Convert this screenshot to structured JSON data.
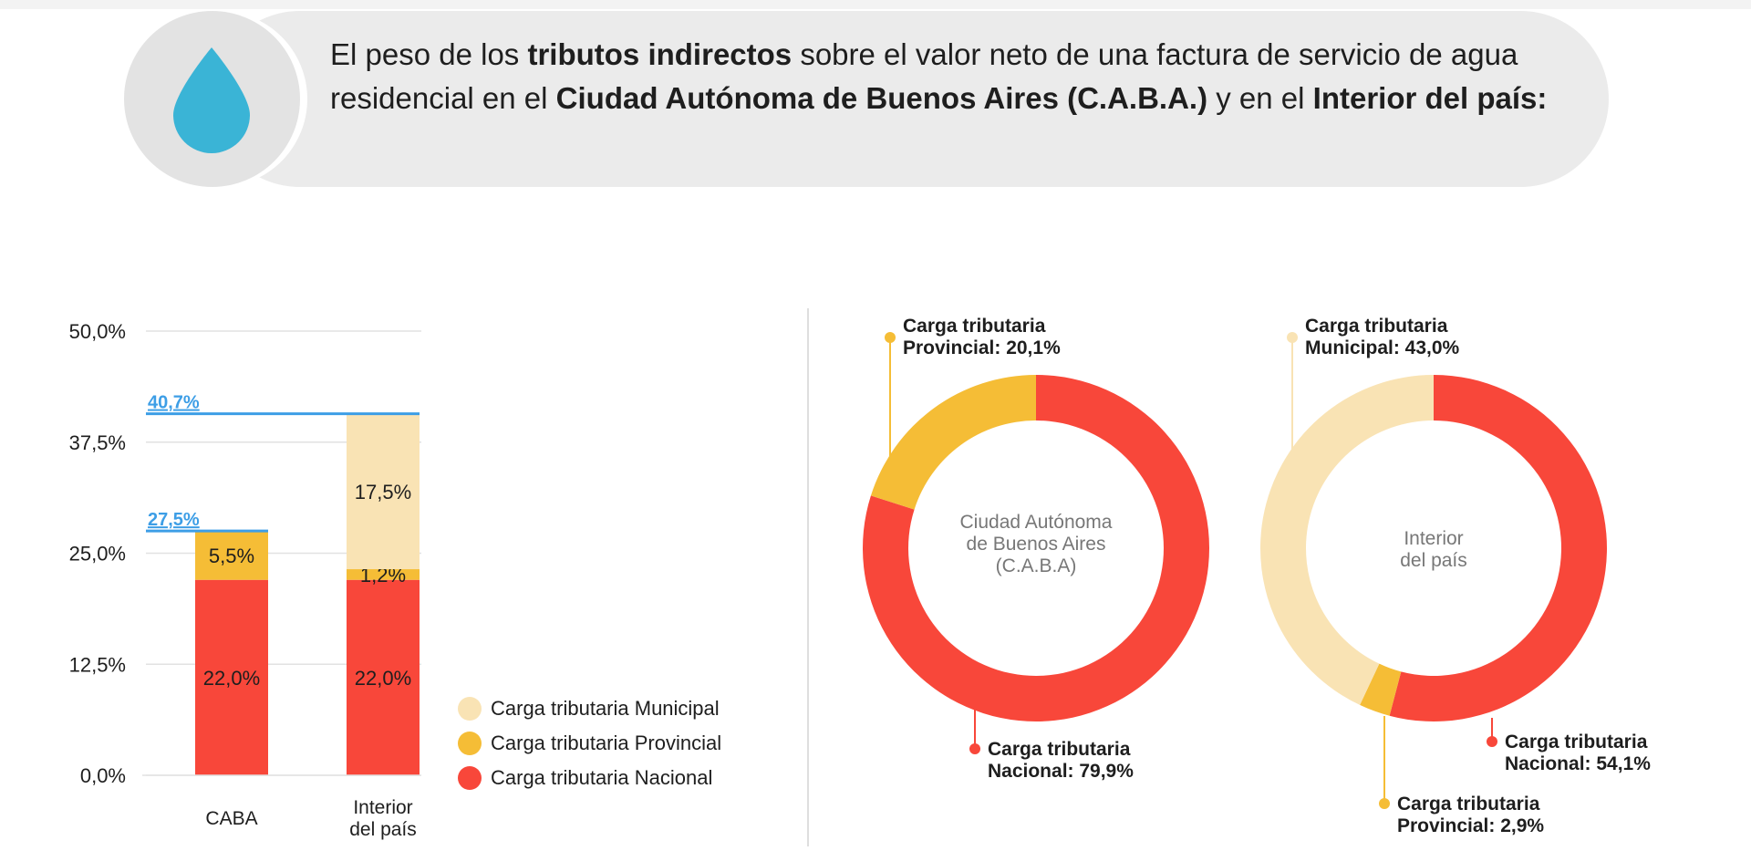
{
  "header": {
    "segments": [
      {
        "text": "El peso de los ",
        "bold": false
      },
      {
        "text": "tributos indirectos",
        "bold": true
      },
      {
        "text": " sobre el valor neto de una factura de servicio de agua residencial en el ",
        "bold": false
      },
      {
        "text": "Ciudad Autónoma de Buenos Aires (C.A.B.A.)",
        "bold": true
      },
      {
        "text": " y en el ",
        "bold": false
      },
      {
        "text": "Interior del país:",
        "bold": true
      }
    ],
    "icon": "water-drop-icon",
    "icon_color": "#3ab4d6"
  },
  "colors": {
    "municipal": "#f9e3b4",
    "provincial": "#f5bd36",
    "nacional": "#f8473a",
    "total_line": "#3d9ee6",
    "grid": "#e2e2e2"
  },
  "legend": {
    "items": [
      {
        "key": "municipal",
        "label": "Carga tributaria Municipal"
      },
      {
        "key": "provincial",
        "label": "Carga tributaria Provincial"
      },
      {
        "key": "nacional",
        "label": "Carga tributaria Nacional"
      }
    ]
  },
  "chart_data": [
    {
      "type": "bar",
      "stacked": true,
      "categories": [
        "CABA",
        "Interior del país"
      ],
      "category_lines": [
        [
          "CABA"
        ],
        [
          "Interior",
          "del país"
        ]
      ],
      "series": [
        {
          "key": "nacional",
          "name": "Carga tributaria Nacional",
          "values": [
            22.0,
            22.0
          ],
          "labels": [
            "22,0%",
            "22,0%"
          ]
        },
        {
          "key": "provincial",
          "name": "Carga tributaria Provincial",
          "values": [
            5.5,
            1.2
          ],
          "labels": [
            "5,5%",
            "1,2%"
          ]
        },
        {
          "key": "municipal",
          "name": "Carga tributaria Municipal",
          "values": [
            0,
            17.5
          ],
          "labels": [
            "",
            "17,5%"
          ]
        }
      ],
      "totals": [
        27.5,
        40.7
      ],
      "total_labels": [
        "27,5%",
        "40,7%"
      ],
      "ylim": [
        0,
        50
      ],
      "yticks": [
        0,
        12.5,
        25,
        37.5,
        50
      ],
      "ytick_labels": [
        "0,0%",
        "12,5%",
        "25,0%",
        "37,5%",
        "50,0%"
      ],
      "grid": true,
      "legend_position": "right"
    },
    {
      "type": "pie",
      "donut": true,
      "center_label": [
        "Ciudad Autónoma",
        "de Buenos Aires",
        "(C.A.B.A)"
      ],
      "slices": [
        {
          "key": "nacional",
          "value": 79.9,
          "label": [
            "Carga tributaria",
            "Nacional: 79,9%"
          ]
        },
        {
          "key": "provincial",
          "value": 20.1,
          "label": [
            "Carga tributaria",
            "Provincial: 20,1%"
          ]
        }
      ]
    },
    {
      "type": "pie",
      "donut": true,
      "center_label": [
        "Interior",
        "del país"
      ],
      "slices": [
        {
          "key": "nacional",
          "value": 54.1,
          "label": [
            "Carga tributaria",
            "Nacional: 54,1%"
          ]
        },
        {
          "key": "provincial",
          "value": 2.9,
          "label": [
            "Carga tributaria",
            "Provincial: 2,9%"
          ]
        },
        {
          "key": "municipal",
          "value": 43.0,
          "label": [
            "Carga tributaria",
            "Municipal: 43,0%"
          ]
        }
      ]
    }
  ]
}
